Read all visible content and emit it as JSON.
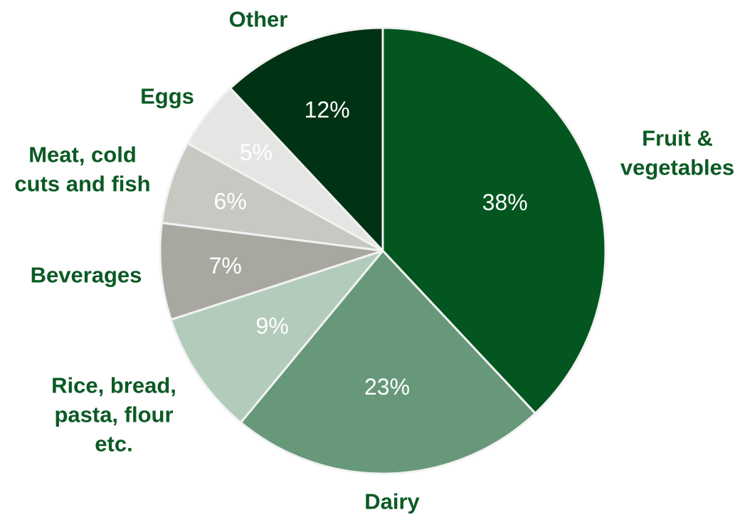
{
  "chart_data": {
    "type": "pie",
    "start_angle_deg": 0,
    "direction": "clockwise",
    "label_color": "#0b5a24",
    "slices": [
      {
        "label": "Fruit & vegetables",
        "value": 38,
        "value_label": "38%",
        "color": "#03561f",
        "value_label_color": "#ffffff"
      },
      {
        "label": "Dairy",
        "value": 23,
        "value_label": "23%",
        "color": "#67987a",
        "value_label_color": "#ffffff"
      },
      {
        "label": "Rice, bread, pasta, flour etc.",
        "value": 9,
        "value_label": "9%",
        "color": "#b3cbbb",
        "value_label_color": "#ffffff"
      },
      {
        "label": "Beverages",
        "value": 7,
        "value_label": "7%",
        "color": "#a9a8a0",
        "value_label_color": "#ffffff"
      },
      {
        "label": "Meat, cold cuts and fish",
        "value": 6,
        "value_label": "6%",
        "color": "#c8c8c2",
        "value_label_color": "#ffffff"
      },
      {
        "label": "Eggs",
        "value": 5,
        "value_label": "5%",
        "color": "#e5e5e3",
        "value_label_color": "#ffffff"
      },
      {
        "label": "Other",
        "value": 12,
        "value_label": "12%",
        "color": "#003214",
        "value_label_color": "#ffffff"
      }
    ]
  }
}
